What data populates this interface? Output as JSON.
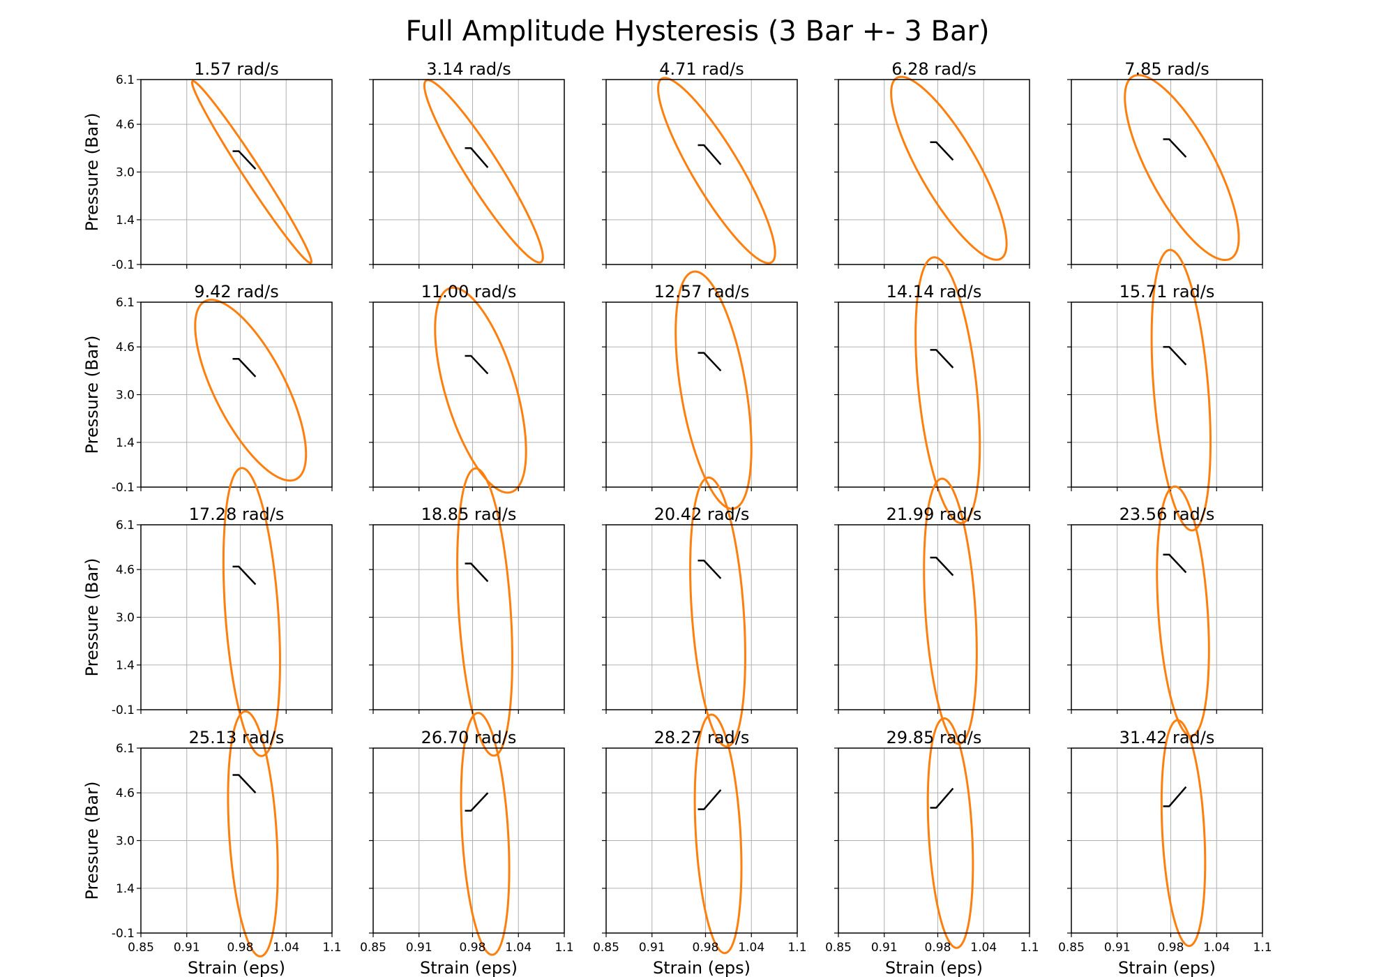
{
  "figure": {
    "title": "Full Amplitude Hysteresis (3 Bar +- 3 Bar)",
    "xlabel": "Strain (eps)",
    "ylabel": "Pressure (Bar)",
    "series_color": "#ff7f0e",
    "trace_color": "#000000",
    "grid_color": "#b0b0b0",
    "xlim": [
      0.85,
      1.1
    ],
    "ylim": [
      -0.1,
      6.1
    ],
    "xticks": [
      "0.85",
      "0.91",
      "0.98",
      "1.04",
      "1.1"
    ],
    "yticks": [
      "-0.1",
      "1.4",
      "3.0",
      "4.6",
      "6.1"
    ]
  },
  "chart_data": [
    {
      "type": "line",
      "title": "1.57 rad/s",
      "loop": {
        "x_min": 0.917,
        "y_at_x_min": 6.0,
        "x_max": 1.073,
        "y_at_x_max": 0.0,
        "width": 0.0035
      },
      "trace": {
        "from": [
          0.97,
          3.7
        ],
        "to": [
          1.0,
          3.1
        ]
      }
    },
    {
      "type": "line",
      "title": "3.14 rad/s",
      "loop": {
        "x_min": 0.917,
        "y_at_x_min": 5.9,
        "x_max": 1.072,
        "y_at_x_max": 0.15,
        "width": 0.007
      },
      "trace": {
        "from": [
          0.97,
          3.8
        ],
        "to": [
          1.0,
          3.15
        ]
      }
    },
    {
      "type": "line",
      "title": "4.71 rad/s",
      "loop": {
        "x_min": 0.918,
        "y_at_x_min": 5.8,
        "x_max": 1.071,
        "y_at_x_max": 0.3,
        "width": 0.01
      },
      "trace": {
        "from": [
          0.97,
          3.9
        ],
        "to": [
          1.0,
          3.25
        ]
      }
    },
    {
      "type": "line",
      "title": "6.28 rad/s",
      "loop": {
        "x_min": 0.919,
        "y_at_x_min": 5.65,
        "x_max": 1.07,
        "y_at_x_max": 0.6,
        "width": 0.013
      },
      "trace": {
        "from": [
          0.97,
          4.0
        ],
        "to": [
          1.0,
          3.4
        ]
      }
    },
    {
      "type": "line",
      "title": "7.85 rad/s",
      "loop": {
        "x_min": 0.92,
        "y_at_x_min": 5.5,
        "x_max": 1.069,
        "y_at_x_max": 0.8,
        "width": 0.016
      },
      "trace": {
        "from": [
          0.97,
          4.1
        ],
        "to": [
          1.0,
          3.5
        ]
      }
    },
    {
      "type": "line",
      "title": "9.42 rad/s",
      "loop": {
        "x_min": 0.921,
        "y_at_x_min": 5.3,
        "x_max": 1.066,
        "y_at_x_max": 1.0,
        "width": 0.018
      },
      "trace": {
        "from": [
          0.97,
          4.2
        ],
        "to": [
          1.0,
          3.6
        ]
      }
    },
    {
      "type": "line",
      "title": "11.00 rad/s",
      "loop": {
        "x_min": 0.931,
        "y_at_x_min": 5.2,
        "x_max": 1.05,
        "y_at_x_max": 1.1,
        "width": 0.02
      },
      "trace": {
        "from": [
          0.97,
          4.3
        ],
        "to": [
          1.0,
          3.7
        ]
      }
    },
    {
      "type": "line",
      "title": "12.57 rad/s",
      "loop": {
        "x_min": 0.941,
        "y_at_x_min": 5.1,
        "x_max": 1.04,
        "y_at_x_max": 1.2,
        "width": 0.022
      },
      "trace": {
        "from": [
          0.97,
          4.4
        ],
        "to": [
          1.0,
          3.8
        ]
      }
    },
    {
      "type": "line",
      "title": "14.14 rad/s",
      "loop": {
        "x_min": 0.951,
        "y_at_x_min": 5.0,
        "x_max": 1.035,
        "y_at_x_max": 1.3,
        "width": 0.023
      },
      "trace": {
        "from": [
          0.97,
          4.5
        ],
        "to": [
          1.0,
          3.9
        ]
      }
    },
    {
      "type": "line",
      "title": "15.71 rad/s",
      "loop": {
        "x_min": 0.955,
        "y_at_x_min": 4.9,
        "x_max": 1.032,
        "y_at_x_max": 1.4,
        "width": 0.024
      },
      "trace": {
        "from": [
          0.97,
          4.6
        ],
        "to": [
          1.0,
          4.0
        ]
      }
    },
    {
      "type": "line",
      "title": "17.28 rad/s",
      "loop": {
        "x_min": 0.958,
        "y_at_x_min": 4.85,
        "x_max": 1.032,
        "y_at_x_max": 1.5,
        "width": 0.025
      },
      "trace": {
        "from": [
          0.97,
          4.7
        ],
        "to": [
          1.0,
          4.1
        ]
      }
    },
    {
      "type": "line",
      "title": "18.85 rad/s",
      "loop": {
        "x_min": 0.96,
        "y_at_x_min": 4.75,
        "x_max": 1.032,
        "y_at_x_max": 1.6,
        "width": 0.026
      },
      "trace": {
        "from": [
          0.97,
          4.8
        ],
        "to": [
          1.0,
          4.2
        ]
      }
    },
    {
      "type": "line",
      "title": "20.42 rad/s",
      "loop": {
        "x_min": 0.96,
        "y_at_x_min": 4.65,
        "x_max": 1.032,
        "y_at_x_max": 1.7,
        "width": 0.026
      },
      "trace": {
        "from": [
          0.97,
          4.9
        ],
        "to": [
          1.0,
          4.3
        ]
      }
    },
    {
      "type": "line",
      "title": "21.99 rad/s",
      "loop": {
        "x_min": 0.962,
        "y_at_x_min": 4.6,
        "x_max": 1.031,
        "y_at_x_max": 1.8,
        "width": 0.026
      },
      "trace": {
        "from": [
          0.97,
          5.0
        ],
        "to": [
          1.0,
          4.4
        ]
      }
    },
    {
      "type": "line",
      "title": "23.56 rad/s",
      "loop": {
        "x_min": 0.962,
        "y_at_x_min": 4.5,
        "x_max": 1.03,
        "y_at_x_max": 1.9,
        "width": 0.026
      },
      "trace": {
        "from": [
          0.97,
          5.1
        ],
        "to": [
          1.0,
          4.5
        ]
      }
    },
    {
      "type": "line",
      "title": "25.13 rad/s",
      "loop": {
        "x_min": 0.964,
        "y_at_x_min": 4.45,
        "x_max": 1.029,
        "y_at_x_max": 2.0,
        "width": 0.026
      },
      "trace": {
        "from": [
          0.97,
          5.2
        ],
        "to": [
          1.0,
          4.6
        ]
      }
    },
    {
      "type": "line",
      "title": "26.70 rad/s",
      "loop": {
        "x_min": 0.965,
        "y_at_x_min": 4.4,
        "x_max": 1.028,
        "y_at_x_max": 2.05,
        "width": 0.026
      },
      "trace": {
        "from": [
          0.97,
          4.0
        ],
        "to": [
          1.0,
          4.6
        ]
      }
    },
    {
      "type": "line",
      "title": "28.27 rad/s",
      "loop": {
        "x_min": 0.966,
        "y_at_x_min": 4.35,
        "x_max": 1.027,
        "y_at_x_max": 2.1,
        "width": 0.026
      },
      "trace": {
        "from": [
          0.97,
          4.05
        ],
        "to": [
          1.0,
          4.7
        ]
      }
    },
    {
      "type": "line",
      "title": "29.85 rad/s",
      "loop": {
        "x_min": 0.967,
        "y_at_x_min": 4.3,
        "x_max": 1.026,
        "y_at_x_max": 2.2,
        "width": 0.026
      },
      "trace": {
        "from": [
          0.97,
          4.1
        ],
        "to": [
          1.0,
          4.75
        ]
      }
    },
    {
      "type": "line",
      "title": "31.42 rad/s",
      "loop": {
        "x_min": 0.968,
        "y_at_x_min": 4.25,
        "x_max": 1.025,
        "y_at_x_max": 2.25,
        "width": 0.026
      },
      "trace": {
        "from": [
          0.97,
          4.15
        ],
        "to": [
          1.0,
          4.8
        ]
      }
    }
  ]
}
